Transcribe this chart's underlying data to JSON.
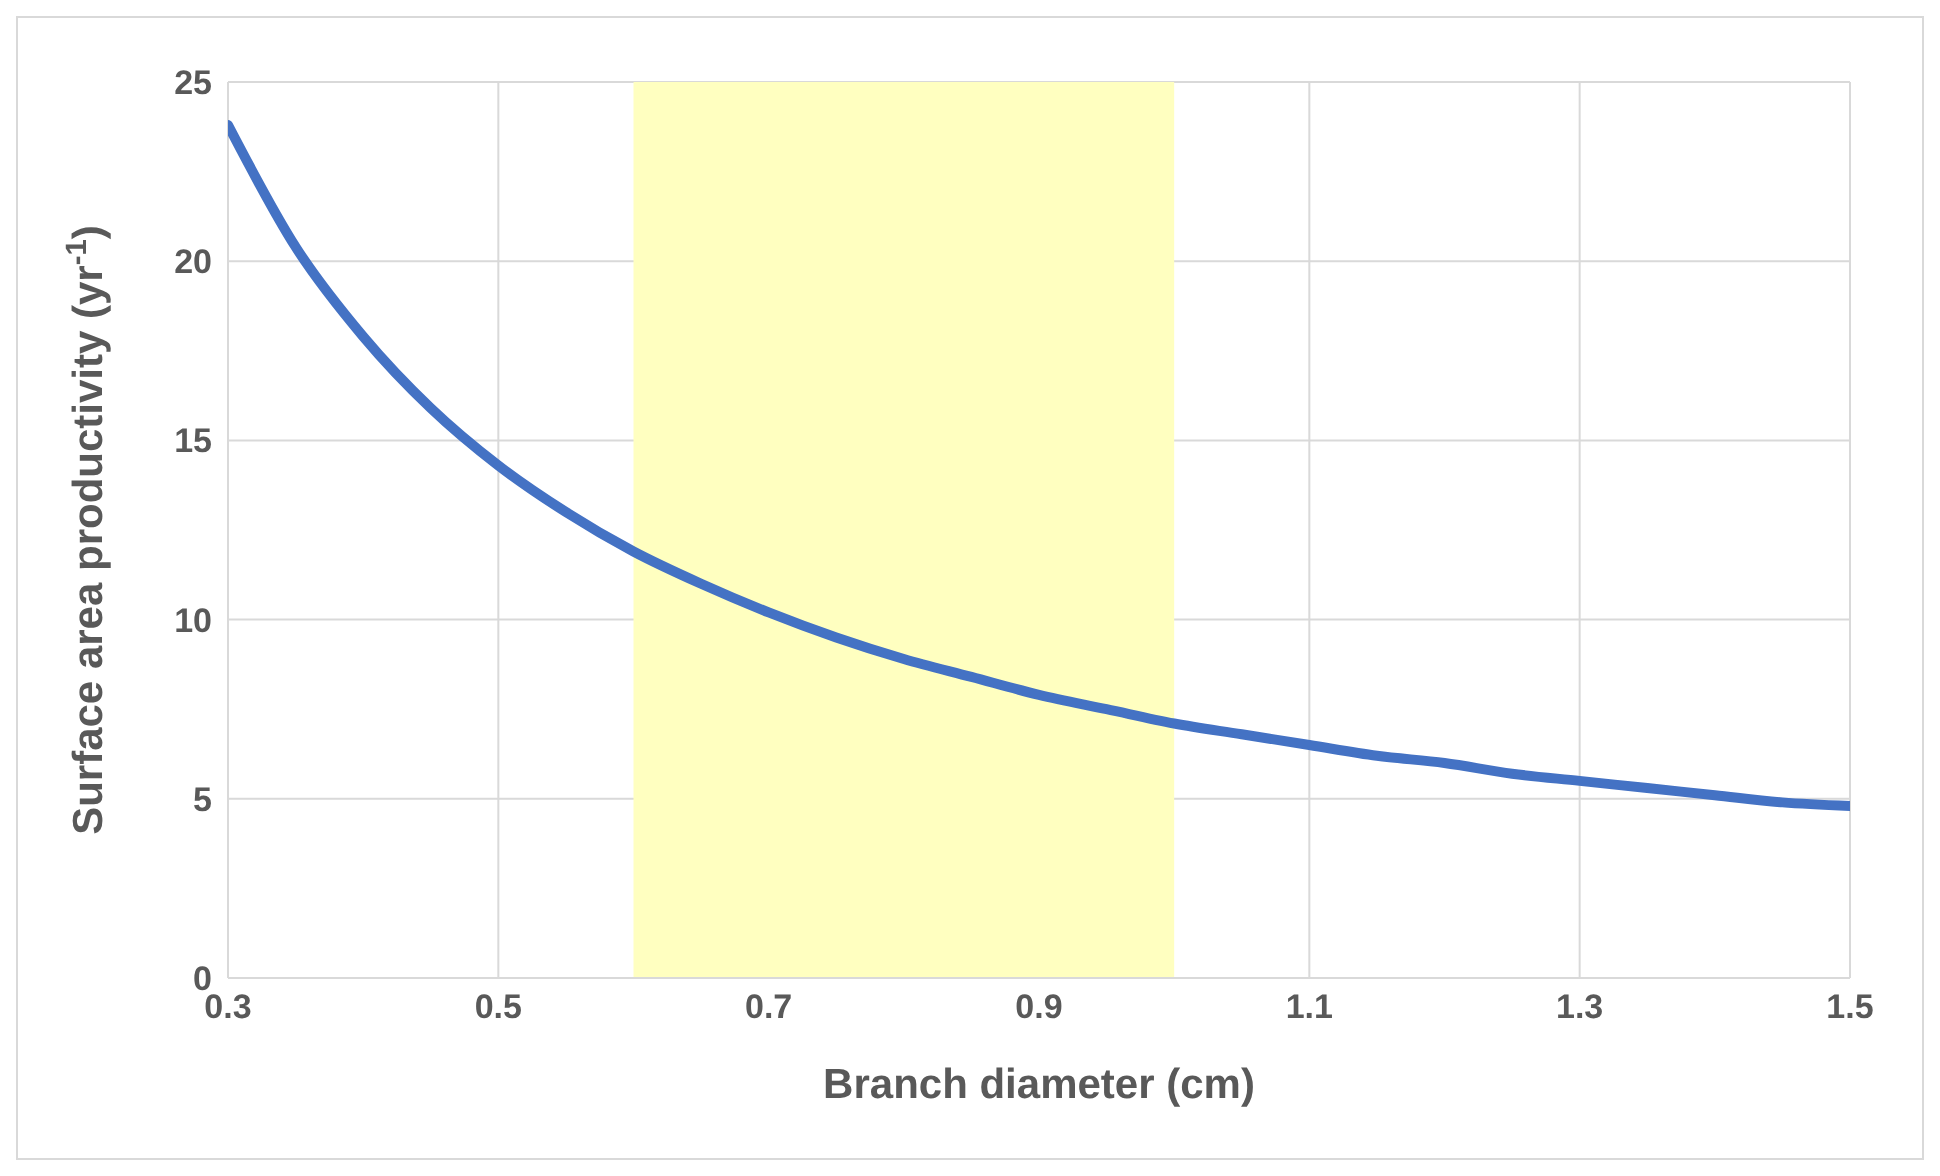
{
  "chart_data": {
    "type": "line",
    "xlabel": "Branch diameter (cm)",
    "ylabel": "Surface area productivity (yr$^{-1}$)",
    "x": [
      0.3,
      0.35,
      0.4,
      0.45,
      0.5,
      0.55,
      0.6,
      0.65,
      0.7,
      0.75,
      0.8,
      0.85,
      0.9,
      0.95,
      1.0,
      1.05,
      1.1,
      1.15,
      1.2,
      1.25,
      1.3,
      1.35,
      1.4,
      1.45,
      1.5
    ],
    "series": [
      {
        "color": "#4472c4",
        "values": [
          23.8,
          20.4,
          17.9,
          15.9,
          14.3,
          13.0,
          11.9,
          11.0,
          10.2,
          9.5,
          8.9,
          8.4,
          7.9,
          7.5,
          7.1,
          6.8,
          6.5,
          6.2,
          6.0,
          5.7,
          5.5,
          5.3,
          5.1,
          4.9,
          4.8
        ]
      }
    ],
    "xlim": [
      0.3,
      1.5
    ],
    "xticks": [
      0.3,
      0.5,
      0.7,
      0.9,
      1.1,
      1.3,
      1.5
    ],
    "ylim": [
      0,
      25
    ],
    "yticks": [
      0,
      5,
      10,
      15,
      20,
      25
    ],
    "bands": [
      {
        "axis": "x",
        "from": 0.6,
        "to": 1.0,
        "color": "#ffffc0"
      }
    ],
    "grid": true,
    "legend": false,
    "marker": "none",
    "line_style": "solid"
  }
}
